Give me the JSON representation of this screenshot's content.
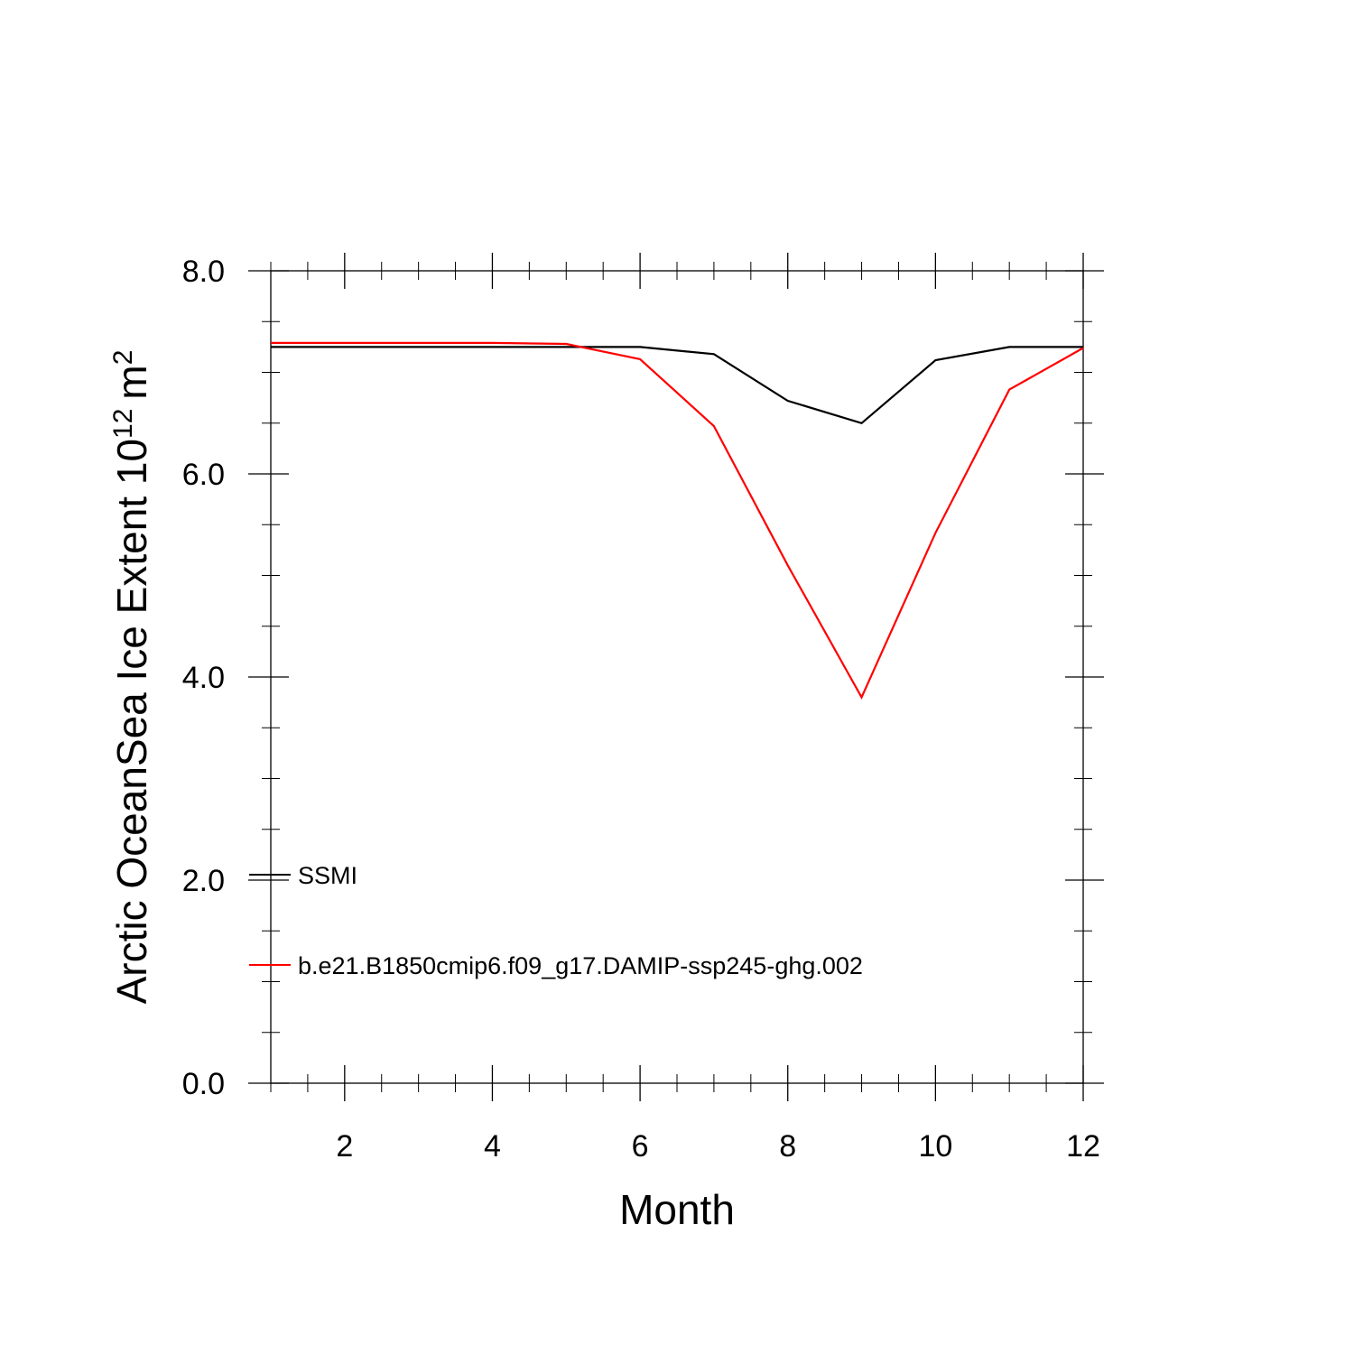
{
  "chart_data": {
    "type": "line",
    "title": "",
    "xlabel": "Month",
    "ylabel": "Arctic OceanSea Ice Extent 10",
    "ylabel_superscript": "12",
    "ylabel_unit": "m",
    "ylabel_unit_superscript": "2",
    "xlim": [
      1,
      12
    ],
    "ylim": [
      0,
      8
    ],
    "x_major_ticks": [
      2,
      4,
      6,
      8,
      10,
      12
    ],
    "x_tick_labels": [
      "2",
      "4",
      "6",
      "8",
      "10",
      "12"
    ],
    "y_major_ticks": [
      0,
      2,
      4,
      6,
      8
    ],
    "y_tick_labels": [
      "0.0",
      "2.0",
      "4.0",
      "6.0",
      "8.0"
    ],
    "grid": false,
    "legend_position": "lower-left",
    "x": [
      1,
      2,
      3,
      4,
      5,
      6,
      7,
      8,
      9,
      10,
      11,
      12
    ],
    "series": [
      {
        "name": "SSMI",
        "color": "#000000",
        "values": [
          7.25,
          7.25,
          7.25,
          7.25,
          7.25,
          7.25,
          7.18,
          6.72,
          6.5,
          7.12,
          7.25,
          7.25
        ]
      },
      {
        "name": "b.e21.B1850cmip6.f09_g17.DAMIP-ssp245-ghg.002",
        "color": "#ff0000",
        "values": [
          7.29,
          7.29,
          7.29,
          7.29,
          7.28,
          7.13,
          6.47,
          5.1,
          3.8,
          5.42,
          6.83,
          7.24
        ]
      }
    ]
  }
}
